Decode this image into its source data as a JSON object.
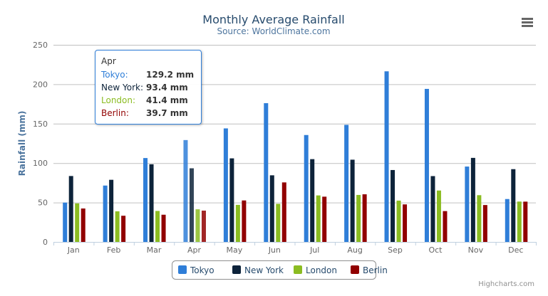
{
  "menu_icon": "hamburger-menu-icon",
  "credits": "Highcharts.com",
  "tooltip": {
    "category": "Apr",
    "rows": [
      {
        "name": "Tokyo:",
        "value": "129.2 mm",
        "color": "#2f7ed8"
      },
      {
        "name": "New York:",
        "value": "93.4 mm",
        "color": "#0d233a"
      },
      {
        "name": "London:",
        "value": "41.4 mm",
        "color": "#8bbc21"
      },
      {
        "name": "Berlin:",
        "value": "39.7 mm",
        "color": "#910000"
      }
    ]
  },
  "chart_data": {
    "type": "bar",
    "title": "Monthly Average Rainfall",
    "subtitle": "Source: WorldClimate.com",
    "xlabel": "",
    "ylabel": "Rainfall (mm)",
    "ylim": [
      0,
      250
    ],
    "yticks": [
      0,
      50,
      100,
      150,
      200,
      250
    ],
    "grid": true,
    "legend_placement": "bottom",
    "categories": [
      "Jan",
      "Feb",
      "Mar",
      "Apr",
      "May",
      "Jun",
      "Jul",
      "Aug",
      "Sep",
      "Oct",
      "Nov",
      "Dec"
    ],
    "series": [
      {
        "name": "Tokyo",
        "color": "#2f7ed8",
        "values": [
          49.9,
          71.5,
          106.4,
          129.2,
          144.0,
          176.0,
          135.6,
          148.5,
          216.4,
          194.1,
          95.6,
          54.4
        ]
      },
      {
        "name": "New York",
        "color": "#0d233a",
        "values": [
          83.6,
          78.8,
          98.5,
          93.4,
          106.0,
          84.5,
          105.0,
          104.3,
          91.2,
          83.5,
          106.6,
          92.3
        ]
      },
      {
        "name": "London",
        "color": "#8bbc21",
        "values": [
          48.9,
          38.8,
          39.3,
          41.4,
          47.0,
          48.3,
          59.0,
          59.6,
          52.4,
          65.2,
          59.3,
          51.2
        ]
      },
      {
        "name": "Berlin",
        "color": "#910000",
        "values": [
          42.4,
          33.2,
          34.5,
          39.7,
          52.6,
          75.5,
          57.4,
          60.4,
          47.6,
          39.1,
          46.8,
          51.1
        ]
      }
    ]
  }
}
